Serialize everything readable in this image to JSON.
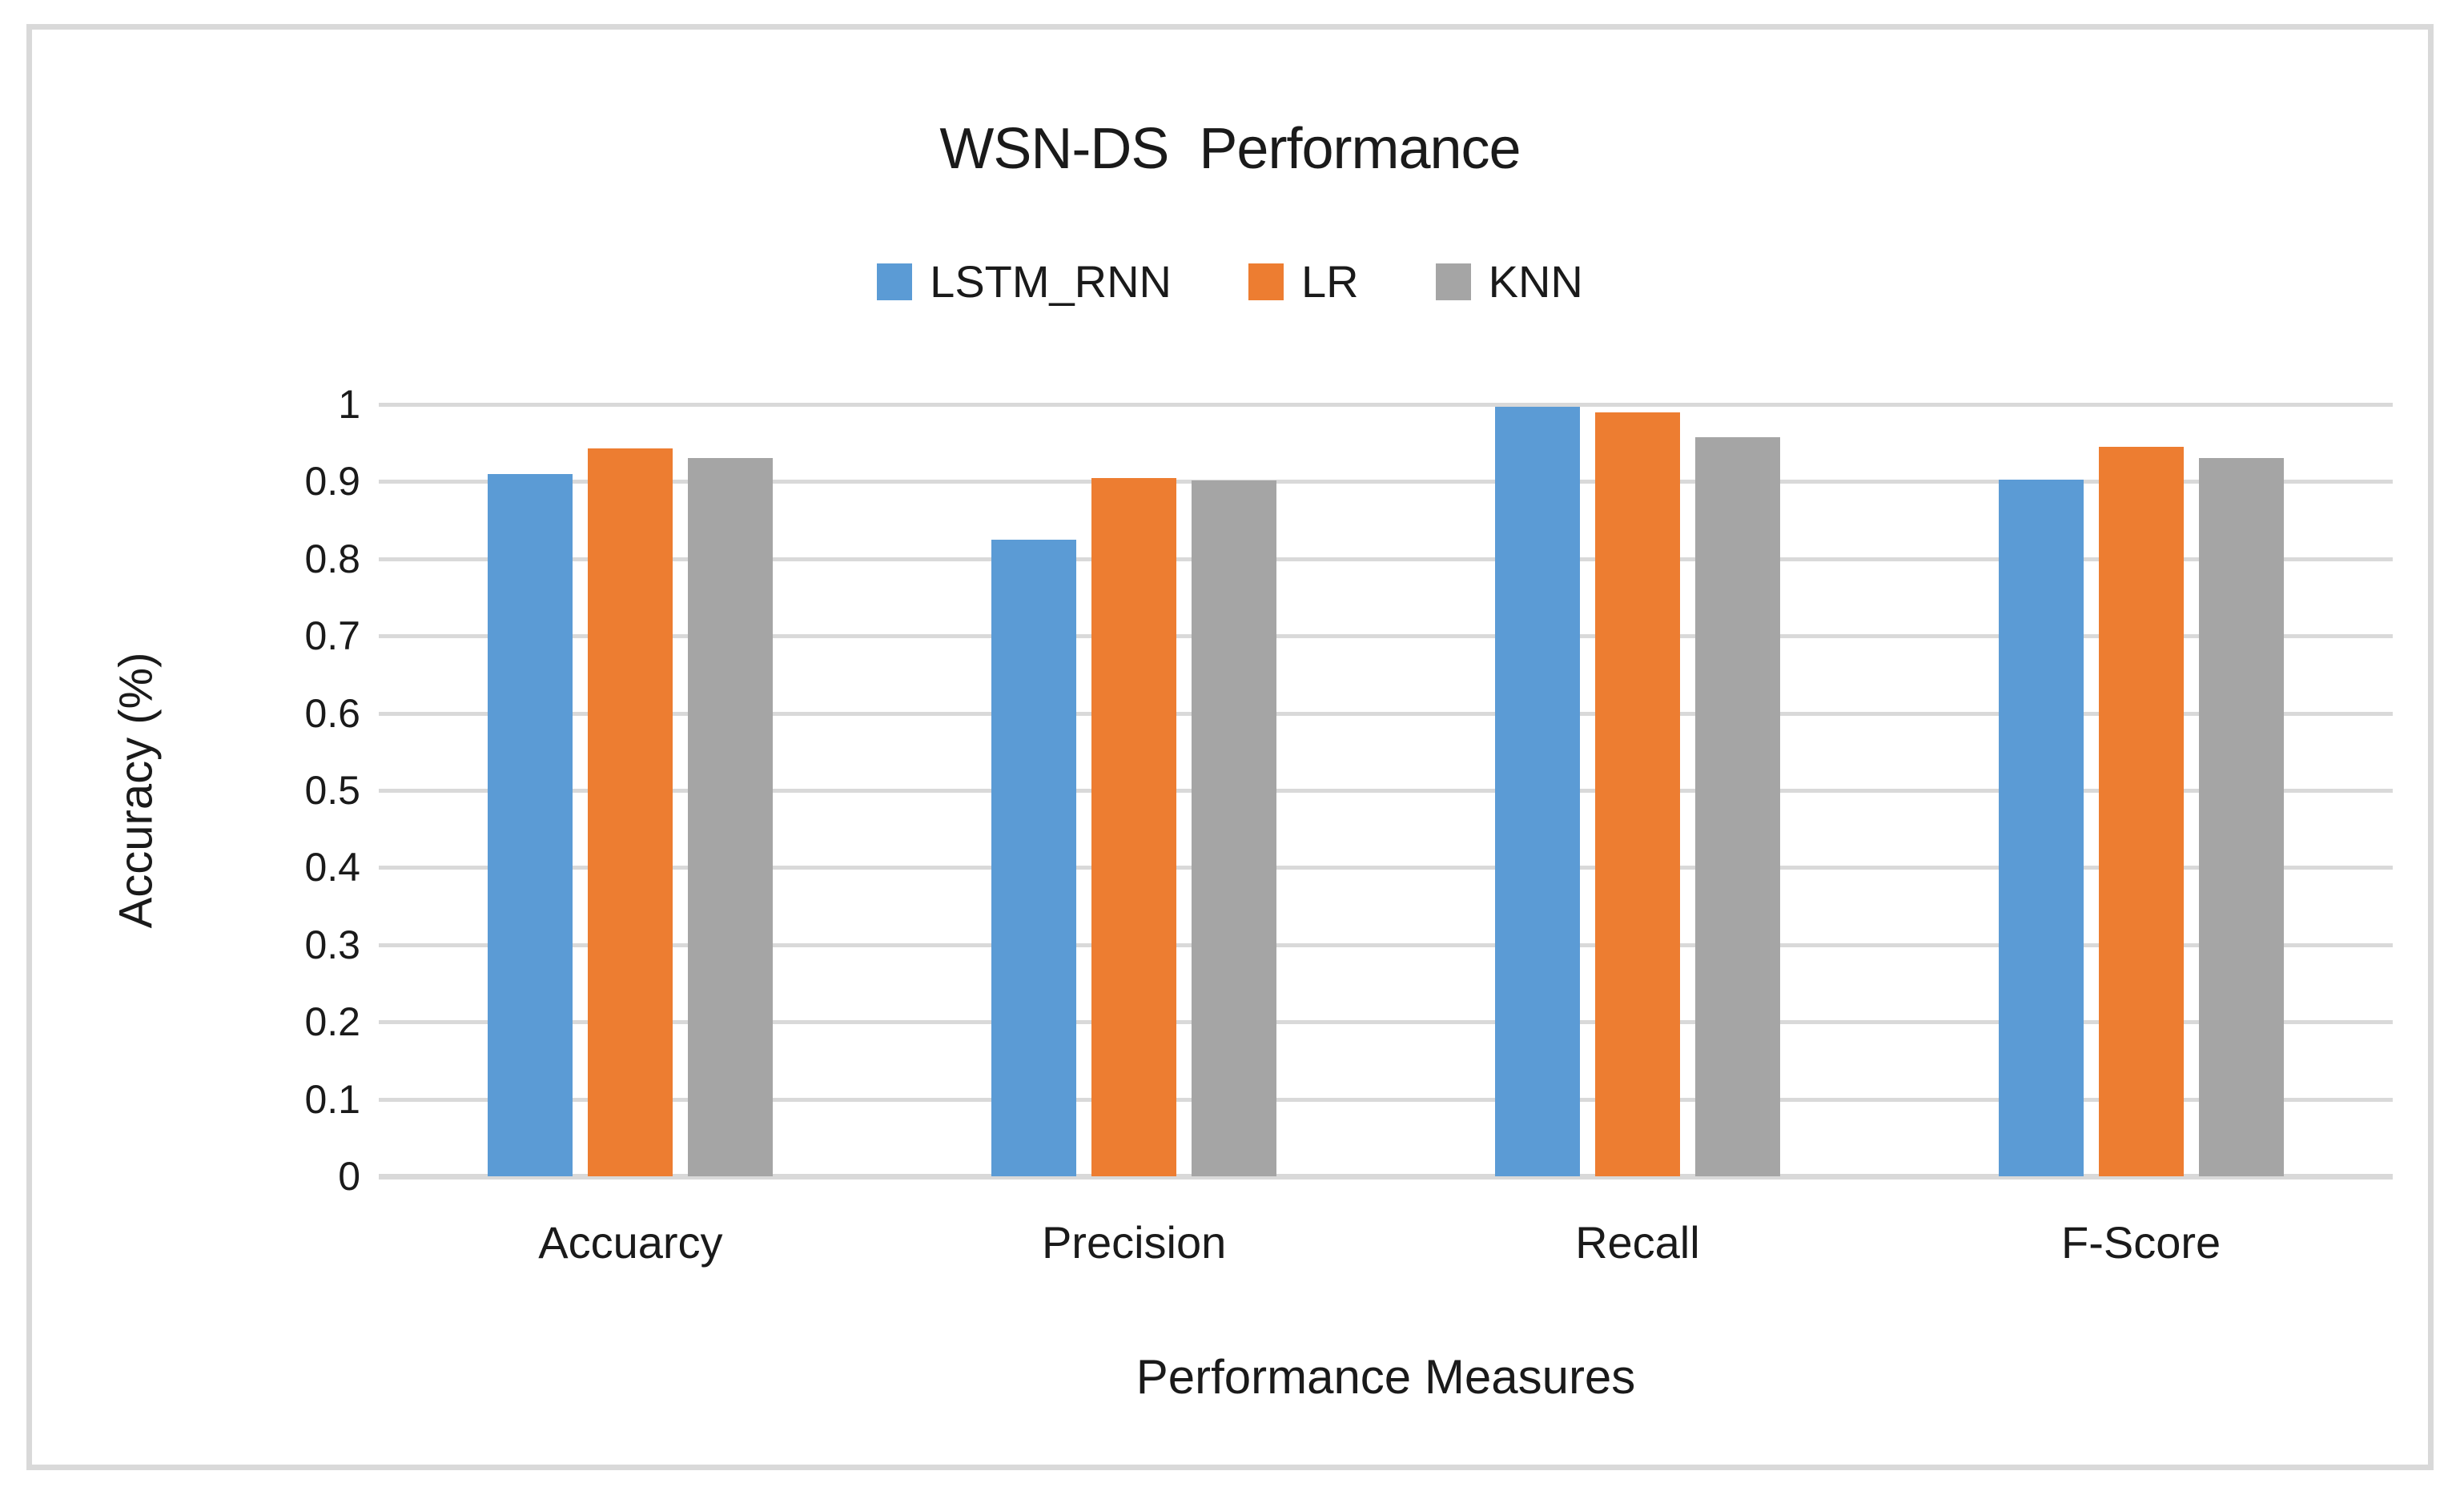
{
  "frame": {
    "border_color": "#D9D9D9"
  },
  "chart_data": {
    "type": "bar",
    "title": "WSN-DS  Performance",
    "xlabel": "Performance Measures",
    "ylabel": "Accuracy (%)",
    "categories": [
      "Accuarcy",
      "Precision",
      "Recall",
      "F-Score"
    ],
    "series": [
      {
        "name": "LSTM_RNN",
        "color": "#5B9BD5",
        "values": [
          0.91,
          0.825,
          0.997,
          0.903
        ]
      },
      {
        "name": "LR",
        "color": "#ED7D31",
        "values": [
          0.943,
          0.905,
          0.99,
          0.945
        ]
      },
      {
        "name": "KNN",
        "color": "#A5A5A5",
        "values": [
          0.93,
          0.901,
          0.958,
          0.93
        ]
      }
    ],
    "ylim": [
      0,
      1
    ],
    "ytick_step": 0.1,
    "ytick_labels": [
      "0",
      "0.1",
      "0.2",
      "0.3",
      "0.4",
      "0.5",
      "0.6",
      "0.7",
      "0.8",
      "0.9",
      "1"
    ],
    "grid": true,
    "gridline_color": "#D9D9D9",
    "axis_line_color": "#D9D9D9",
    "legend_position": "top-center",
    "text_color": "#1a1a1a"
  }
}
